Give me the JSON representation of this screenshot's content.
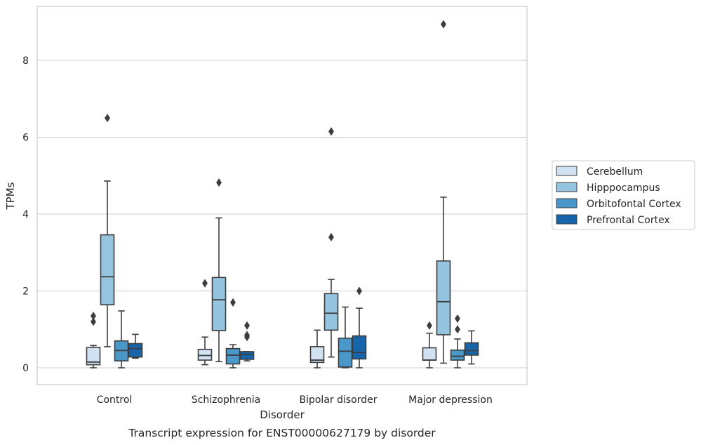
{
  "chart_data": {
    "type": "box",
    "title": "",
    "caption": "Transcript expression for ENST00000627179 by disorder",
    "xlabel": "Disorder",
    "ylabel": "TPMs",
    "ylim": [
      -0.45,
      9.4
    ],
    "yticks": [
      0,
      2,
      4,
      6,
      8
    ],
    "grid": "horizontal",
    "legend_position": "right",
    "categories": [
      "Control",
      "Schizophrenia",
      "Bipolar disorder",
      "Major depression"
    ],
    "series": [
      {
        "name": "Cerebellum",
        "color": "#d0e1f2",
        "boxes": [
          {
            "whislo": 0.0,
            "q1": 0.08,
            "med": 0.15,
            "q3": 0.53,
            "whishi": 0.58,
            "fliers": [
              1.2,
              1.35
            ]
          },
          {
            "whislo": 0.08,
            "q1": 0.2,
            "med": 0.32,
            "q3": 0.48,
            "whishi": 0.8,
            "fliers": [
              2.2
            ]
          },
          {
            "whislo": 0.0,
            "q1": 0.14,
            "med": 0.2,
            "q3": 0.55,
            "whishi": 0.98,
            "fliers": []
          },
          {
            "whislo": 0.0,
            "q1": 0.2,
            "med": 0.2,
            "q3": 0.52,
            "whishi": 0.9,
            "fliers": [
              1.1
            ]
          }
        ]
      },
      {
        "name": "Hipppocampus",
        "color": "#94c4df",
        "boxes": [
          {
            "whislo": 0.55,
            "q1": 1.64,
            "med": 2.37,
            "q3": 3.46,
            "whishi": 4.86,
            "fliers": [
              6.5
            ]
          },
          {
            "whislo": 0.16,
            "q1": 0.97,
            "med": 1.77,
            "q3": 2.35,
            "whishi": 3.9,
            "fliers": [
              4.82
            ]
          },
          {
            "whislo": 0.28,
            "q1": 0.98,
            "med": 1.42,
            "q3": 1.93,
            "whishi": 2.3,
            "fliers": [
              3.4,
              6.15
            ]
          },
          {
            "whislo": 0.12,
            "q1": 0.86,
            "med": 1.72,
            "q3": 2.78,
            "whishi": 4.44,
            "fliers": [
              8.94
            ]
          }
        ]
      },
      {
        "name": "Orbitofontal Cortex",
        "color": "#4a98c9",
        "boxes": [
          {
            "whislo": 0.0,
            "q1": 0.18,
            "med": 0.45,
            "q3": 0.7,
            "whishi": 1.48,
            "fliers": []
          },
          {
            "whislo": 0.0,
            "q1": 0.1,
            "med": 0.33,
            "q3": 0.5,
            "whishi": 0.6,
            "fliers": [
              1.7
            ]
          },
          {
            "whislo": 0.0,
            "q1": 0.02,
            "med": 0.43,
            "q3": 0.77,
            "whishi": 1.58,
            "fliers": []
          },
          {
            "whislo": 0.0,
            "q1": 0.2,
            "med": 0.3,
            "q3": 0.46,
            "whishi": 0.75,
            "fliers": [
              1.0,
              1.28
            ]
          }
        ]
      },
      {
        "name": "Prefrontal Cortex",
        "color": "#1764ab",
        "boxes": [
          {
            "whislo": 0.25,
            "q1": 0.28,
            "med": 0.5,
            "q3": 0.63,
            "whishi": 0.87,
            "fliers": []
          },
          {
            "whislo": 0.18,
            "q1": 0.22,
            "med": 0.35,
            "q3": 0.42,
            "whishi": 0.42,
            "fliers": [
              0.8,
              0.85,
              1.1
            ]
          },
          {
            "whislo": 0.0,
            "q1": 0.23,
            "med": 0.4,
            "q3": 0.83,
            "whishi": 1.55,
            "fliers": [
              2.0
            ]
          },
          {
            "whislo": 0.1,
            "q1": 0.33,
            "med": 0.45,
            "q3": 0.65,
            "whishi": 0.96,
            "fliers": []
          }
        ]
      }
    ]
  }
}
